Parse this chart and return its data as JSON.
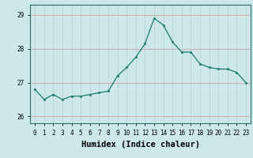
{
  "x": [
    0,
    1,
    2,
    3,
    4,
    5,
    6,
    7,
    8,
    9,
    10,
    11,
    12,
    13,
    14,
    15,
    16,
    17,
    18,
    19,
    20,
    21,
    22,
    23
  ],
  "y": [
    26.8,
    26.5,
    26.65,
    26.5,
    26.6,
    26.6,
    26.65,
    26.7,
    26.75,
    27.2,
    27.45,
    27.75,
    28.15,
    28.9,
    28.7,
    28.2,
    27.9,
    27.9,
    27.55,
    27.45,
    27.4,
    27.4,
    27.3,
    27.0
  ],
  "xlabel": "Humidex (Indice chaleur)",
  "xlim": [
    -0.5,
    23.5
  ],
  "ylim": [
    25.8,
    29.3
  ],
  "yticks": [
    26,
    27,
    28,
    29
  ],
  "xticks": [
    0,
    1,
    2,
    3,
    4,
    5,
    6,
    7,
    8,
    9,
    10,
    11,
    12,
    13,
    14,
    15,
    16,
    17,
    18,
    19,
    20,
    21,
    22,
    23
  ],
  "line_color": "#1a7a6e",
  "marker_color": "#1a7a6e",
  "bg_color": "#cce8e8",
  "grid_color": "#b8d4d4",
  "tick_label_fontsize": 5.5,
  "xlabel_fontsize": 7.5
}
